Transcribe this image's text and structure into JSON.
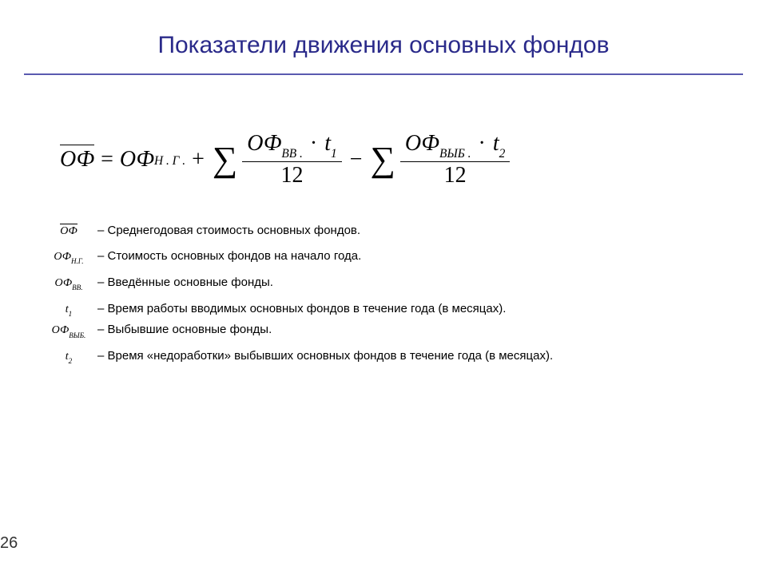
{
  "title": "Показатели движения основных фондов",
  "formula": {
    "lhs_base": "ОФ",
    "rhs_ng_base": "ОФ",
    "rhs_ng_sub": "Н . Г .",
    "vv_base": "ОФ",
    "vv_sub": "ВВ .",
    "t1_base": "t",
    "t1_sub": "1",
    "vyb_base": "ОФ",
    "vyb_sub": "ВЫБ .",
    "t2_base": "t",
    "t2_sub": "2",
    "denom": "12",
    "eq": "=",
    "plus": "+",
    "minus": "−",
    "dot": "·",
    "sigma": "∑"
  },
  "legend": [
    {
      "sym_base": "ОФ",
      "sym_sub": "",
      "overline": true,
      "desc": "– Среднегодовая стоимость основных фондов."
    },
    {
      "sym_base": "ОФ",
      "sym_sub": "Н.Г.",
      "overline": false,
      "desc": "– Стоимость основных фондов на начало года."
    },
    {
      "sym_base": "ОФ",
      "sym_sub": "ВВ.",
      "overline": false,
      "desc": "– Введённые основные фонды."
    },
    {
      "sym_base": "t",
      "sym_sub": "1",
      "overline": false,
      "desc": "– Время работы вводимых основных фондов в течение года (в месяцах)."
    },
    {
      "sym_base": "ОФ",
      "sym_sub": "ВЫБ.",
      "overline": false,
      "desc": "– Выбывшие основные фонды."
    },
    {
      "sym_base": "t",
      "sym_sub": "2",
      "overline": false,
      "desc": "– Время «недоработки» выбывших основных фондов в течение года (в месяцах)."
    }
  ],
  "page_number": "26"
}
